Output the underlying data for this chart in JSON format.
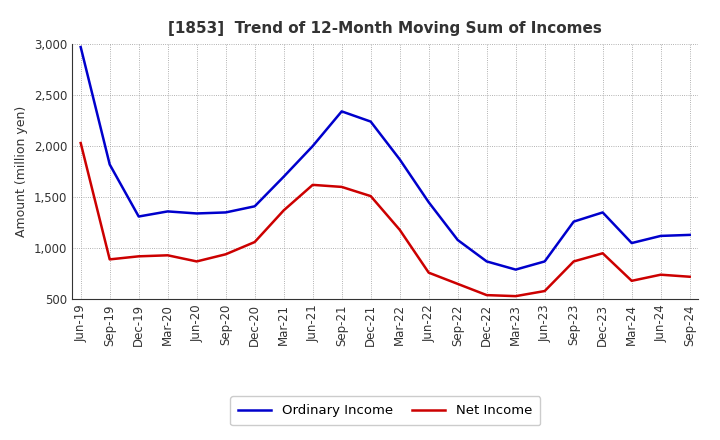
{
  "title": "[1853]  Trend of 12-Month Moving Sum of Incomes",
  "ylabel": "Amount (million yen)",
  "background_color": "#ffffff",
  "plot_bg_color": "#ffffff",
  "grid_color": "#999999",
  "xlabels": [
    "Jun-19",
    "Sep-19",
    "Dec-19",
    "Mar-20",
    "Jun-20",
    "Sep-20",
    "Dec-20",
    "Mar-21",
    "Jun-21",
    "Sep-21",
    "Dec-21",
    "Mar-22",
    "Jun-22",
    "Sep-22",
    "Dec-22",
    "Mar-23",
    "Jun-23",
    "Sep-23",
    "Dec-23",
    "Mar-24",
    "Jun-24",
    "Sep-24"
  ],
  "ordinary_income": [
    2970,
    1820,
    1310,
    1360,
    1340,
    1350,
    1410,
    1700,
    2000,
    2340,
    2240,
    1870,
    1450,
    1080,
    870,
    790,
    870,
    1260,
    1350,
    1050,
    1120,
    1130
  ],
  "net_income": [
    2030,
    890,
    920,
    930,
    870,
    940,
    1060,
    1370,
    1620,
    1600,
    1510,
    1180,
    760,
    650,
    540,
    530,
    580,
    870,
    950,
    680,
    740,
    720
  ],
  "ordinary_color": "#0000cc",
  "net_color": "#cc0000",
  "ylim_min": 500,
  "ylim_max": 3000,
  "yticks": [
    500,
    1000,
    1500,
    2000,
    2500,
    3000
  ],
  "line_width": 1.8,
  "title_color": "#333333",
  "tick_color": "#333333",
  "legend_labels": [
    "Ordinary Income",
    "Net Income"
  ],
  "title_fontsize": 11,
  "ylabel_fontsize": 9,
  "tick_fontsize": 8.5
}
